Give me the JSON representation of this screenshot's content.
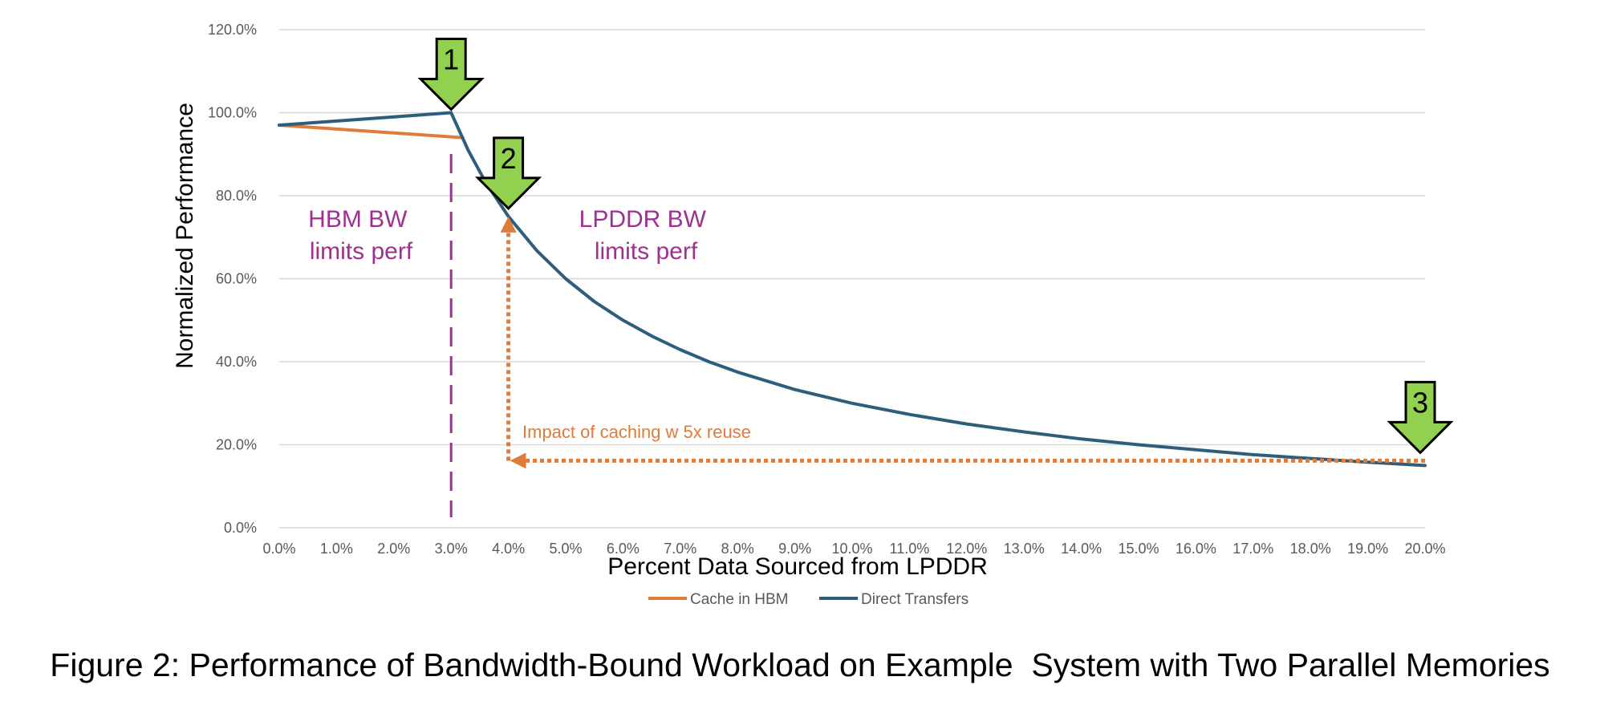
{
  "caption": "Figure 2: Performance of Bandwidth-Bound Workload on Example  System with Two Parallel Memories",
  "chart_data": {
    "type": "line",
    "xlabel": "Percent Data Sourced from LPDDR",
    "ylabel": "Normalized Performance",
    "x_ticks": [
      "0.0%",
      "1.0%",
      "2.0%",
      "3.0%",
      "4.0%",
      "5.0%",
      "6.0%",
      "7.0%",
      "8.0%",
      "9.0%",
      "10.0%",
      "11.0%",
      "12.0%",
      "13.0%",
      "14.0%",
      "15.0%",
      "16.0%",
      "17.0%",
      "18.0%",
      "19.0%",
      "20.0%"
    ],
    "y_ticks": [
      "0.0%",
      "20.0%",
      "40.0%",
      "60.0%",
      "80.0%",
      "100.0%",
      "120.0%"
    ],
    "xlim": [
      0,
      20
    ],
    "ylim": [
      0,
      120
    ],
    "grid": "horizontal",
    "legend_position": "bottom",
    "series": [
      {
        "name": "Cache in HBM",
        "color": "#E07B39",
        "x": [
          0,
          3.2
        ],
        "y": [
          97,
          94
        ]
      },
      {
        "name": "Direct Transfers",
        "color": "#2E5E7E",
        "x": [
          0,
          1,
          2,
          3,
          3.3,
          3.6,
          4,
          4.5,
          5,
          5.5,
          6,
          6.5,
          7,
          7.5,
          8,
          9,
          10,
          11,
          12,
          13,
          14,
          15,
          16,
          17,
          18,
          19,
          20
        ],
        "y": [
          97,
          98,
          99,
          100,
          90.9,
          83.3,
          75,
          66.7,
          60,
          54.5,
          50,
          46.2,
          42.9,
          40,
          37.5,
          33.3,
          30,
          27.3,
          25,
          23.1,
          21.4,
          20,
          18.8,
          17.6,
          16.7,
          15.8,
          15
        ]
      }
    ],
    "annotations": {
      "hbm_region": [
        "HBM BW",
        "limits perf"
      ],
      "lpddr_region": [
        "LPDDR BW",
        "limits perf"
      ],
      "impact": "Impact of caching w 5x reuse",
      "markers": [
        "1",
        "2",
        "3"
      ],
      "region_color": "#A0308F",
      "arrow_color": "#E07B39",
      "marker_fill": "#92D050",
      "divider_x": 3
    }
  }
}
